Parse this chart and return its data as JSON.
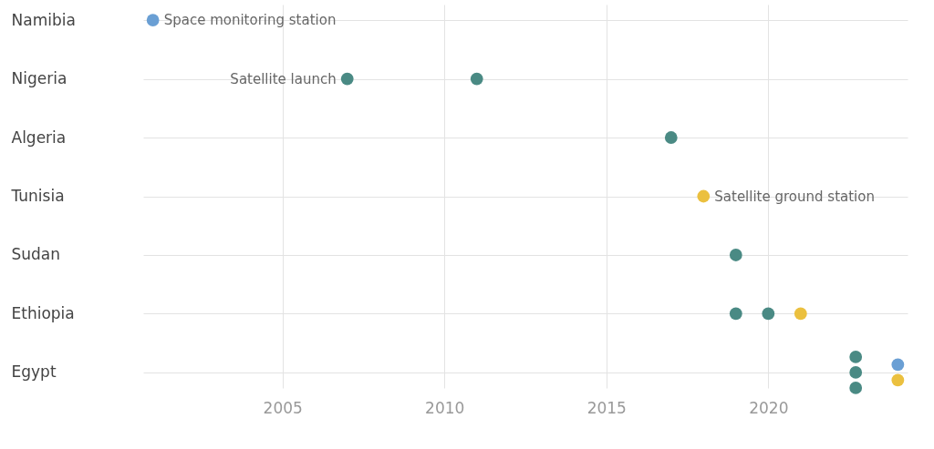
{
  "chart_data": {
    "type": "scatter",
    "orientation": "horizontal",
    "categories": [
      "Namibia",
      "Nigeria",
      "Algeria",
      "Tunisia",
      "Sudan",
      "Ethiopia",
      "Egypt"
    ],
    "xlim": [
      2000.7,
      2024.3
    ],
    "xticks": [
      2005,
      2010,
      2015,
      2020
    ],
    "grid": true,
    "marker": "circle",
    "series": [
      {
        "name": "Satellite launch",
        "color": "#4a8a84",
        "values": [
          null,
          2007,
          2017,
          null,
          2019,
          2019,
          2022.7
        ]
      },
      {
        "color": "#4a8a84",
        "values": [
          null,
          2011,
          null,
          null,
          null,
          2020,
          2022.7
        ]
      },
      {
        "color": "#4a8a84",
        "values": [
          null,
          null,
          null,
          null,
          null,
          null,
          2022.7
        ]
      },
      {
        "name": "Space monitoring station",
        "color": "#6a9fd4",
        "values": [
          2001,
          null,
          null,
          null,
          null,
          null,
          2024
        ]
      },
      {
        "name": "Satellite ground station",
        "color": "#ebc03f",
        "values": [
          null,
          null,
          null,
          2018,
          null,
          2021,
          2024
        ]
      }
    ]
  }
}
